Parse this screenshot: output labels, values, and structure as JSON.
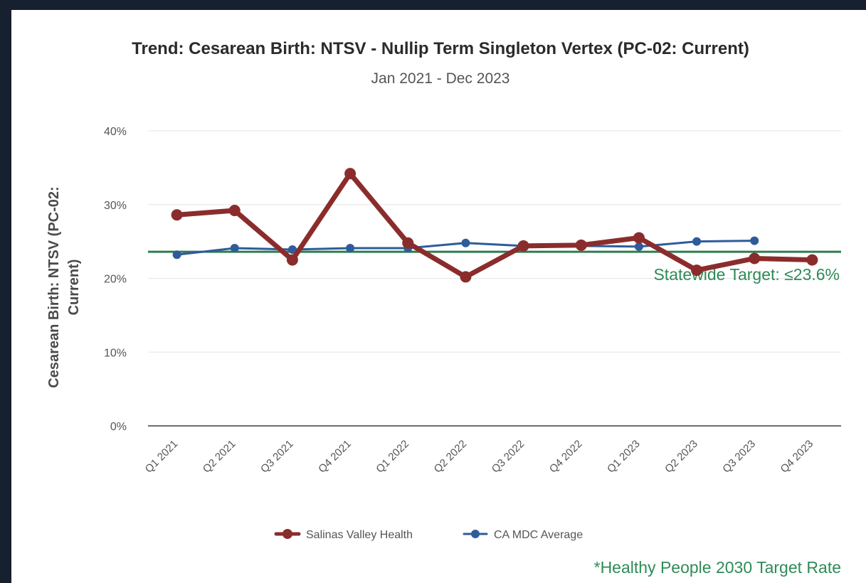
{
  "chart_data": {
    "type": "line",
    "title": "Trend: Cesarean Birth: NTSV - Nullip Term Singleton Vertex (PC-02: Current)",
    "subtitle": "Jan 2021 - Dec 2023",
    "ylabel_lines": [
      "Cesarean Birth: NTSV (PC-02:",
      "Current)"
    ],
    "xlabel": "",
    "ylim": [
      0,
      40
    ],
    "yticks": [
      0,
      10,
      20,
      30,
      40
    ],
    "ytick_labels": [
      "0%",
      "10%",
      "20%",
      "30%",
      "40%"
    ],
    "grid": true,
    "categories": [
      "Q1 2021",
      "Q2 2021",
      "Q3 2021",
      "Q4 2021",
      "Q1 2022",
      "Q2 2022",
      "Q3 2022",
      "Q4 2022",
      "Q1 2023",
      "Q2 2023",
      "Q3 2023",
      "Q4 2023"
    ],
    "series": [
      {
        "name": "Salinas Valley Health",
        "color": "#8b2c2c",
        "values": [
          28.6,
          29.2,
          22.5,
          34.2,
          24.8,
          20.2,
          24.4,
          24.5,
          25.5,
          21.1,
          22.7,
          22.5
        ]
      },
      {
        "name": "CA MDC Average",
        "color": "#2e5c9a",
        "values": [
          23.2,
          24.1,
          23.9,
          24.1,
          24.1,
          24.8,
          24.4,
          24.4,
          24.3,
          25.0,
          25.1,
          null
        ]
      }
    ],
    "target": {
      "value": 23.6,
      "label": "Statewide Target: ≤23.6%",
      "color": "#2e7d4f"
    },
    "legend_position": "bottom",
    "footnote": "*Healthy People 2030 Target Rate"
  }
}
